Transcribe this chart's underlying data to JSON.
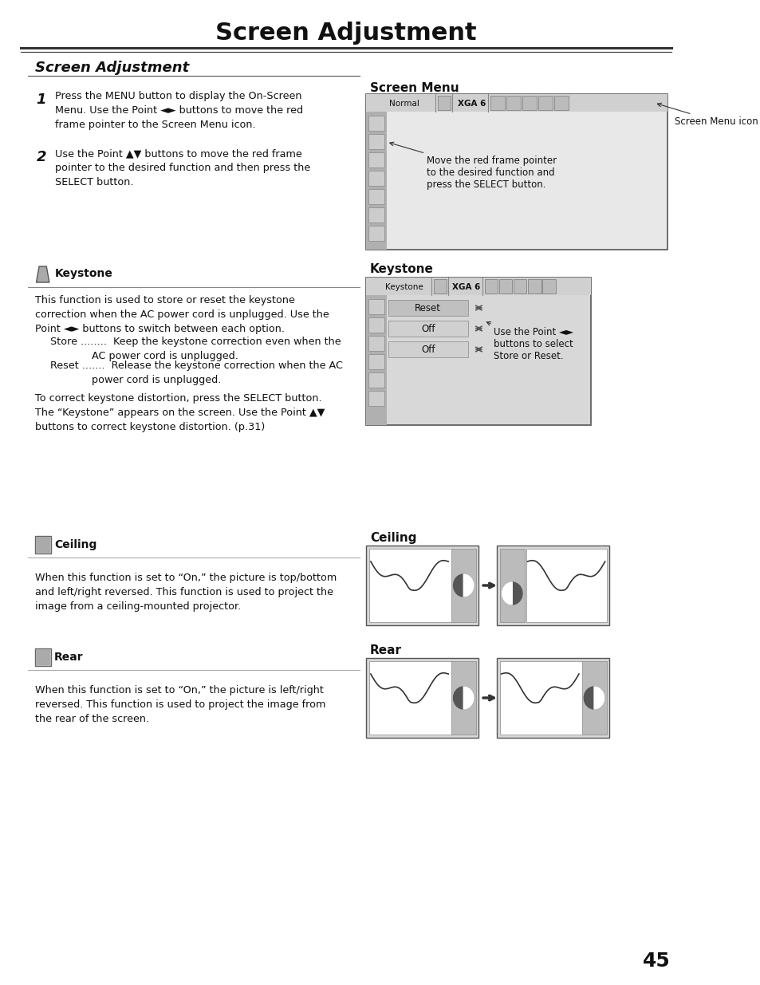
{
  "title": "Screen Adjustment",
  "subtitle": "Screen Adjustment",
  "bg_color": "#ffffff",
  "text_color": "#000000",
  "page_number": "45",
  "screen_menu_label": "Screen Menu",
  "screen_menu_note1": "Screen Menu icon",
  "screen_menu_note2": "Move the red frame pointer\nto the desired function and\npress the SELECT button.",
  "keystone_icon_label": "Keystone",
  "keystone_header": "Keystone",
  "keystone_text1": "This function is used to store or reset the keystone\ncorrection when the AC power cord is unplugged. Use the\nPoint ◄► buttons to switch between each option.",
  "keystone_store": "  Store ........  Keep the keystone correction even when the\n               AC power cord is unplugged.",
  "keystone_reset": "  Reset .......  Release the keystone correction when the AC\n               power cord is unplugged.",
  "keystone_text2": "To correct keystone distortion, press the SELECT button.\nThe “Keystone” appears on the screen. Use the Point ▲▼\nbuttons to correct keystone distortion. (p.31)",
  "keystone_note": "Use the Point ◄►\nbuttons to select\nStore or Reset.",
  "ceiling_icon_label": "Ceiling",
  "ceiling_header": "Ceiling",
  "ceiling_text": "When this function is set to “On,” the picture is top/bottom\nand left/right reversed. This function is used to project the\nimage from a ceiling-mounted projector.",
  "rear_icon_label": "Rear",
  "rear_header": "Rear",
  "rear_text": "When this function is set to “On,” the picture is left/right\nreversed. This function is used to project the image from\nthe rear of the screen."
}
